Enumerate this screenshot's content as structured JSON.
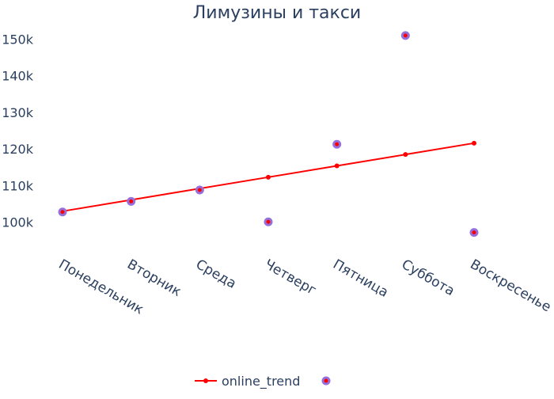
{
  "chart_data": {
    "type": "scatter",
    "title": "Лимузины и такси",
    "xlabel": "",
    "ylabel": "",
    "categories": [
      "Понедельник",
      "Вторник",
      "Среда",
      "Четверг",
      "Пятница",
      "Суббота",
      "Воскресенье"
    ],
    "ylim": [
      91500,
      154000
    ],
    "yticks": [
      100000,
      110000,
      120000,
      130000,
      140000,
      150000
    ],
    "ytick_labels": [
      "100k",
      "110k",
      "120k",
      "130k",
      "140k",
      "150k"
    ],
    "grid": false,
    "legend_position": "bottom-center",
    "series": [
      {
        "name": "online_trend",
        "mode": "lines+markers",
        "color": "#ff0000",
        "values": [
          103000,
          106100,
          109200,
          112300,
          115400,
          118500,
          121600
        ]
      },
      {
        "name": "",
        "mode": "markers",
        "color": "#ff0000",
        "outline_color": "#9370db",
        "values": [
          102800,
          105700,
          108800,
          100100,
          121300,
          151000,
          97200
        ]
      }
    ]
  }
}
